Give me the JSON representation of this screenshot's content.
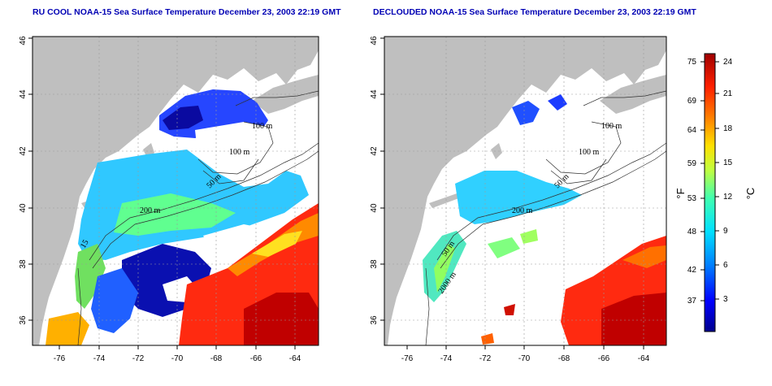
{
  "panels": [
    {
      "id": "left",
      "title": "RU COOL NOAA-15 Sea Surface Temperature December 23, 2003 22:19 GMT"
    },
    {
      "id": "right",
      "title": "DECLOUDED NOAA-15 Sea Surface Temperature December 23, 2003 22:19 GMT"
    }
  ],
  "axes": {
    "lon_ticks": [
      "-76",
      "-74",
      "-72",
      "-70",
      "-68",
      "-66",
      "-64"
    ],
    "lat_ticks": [
      "36",
      "38",
      "40",
      "42",
      "44",
      "46"
    ]
  },
  "contour_labels": {
    "left": [
      "100 m",
      "100 m",
      "50 m",
      "200 m",
      "15"
    ],
    "right": [
      "100 m",
      "100 m",
      "50 m",
      "200 m",
      "50 m",
      "2000 m"
    ]
  },
  "colorbar": {
    "fahrenheit_ticks": [
      "75",
      "69",
      "64",
      "59",
      "53",
      "48",
      "42",
      "37"
    ],
    "celsius_ticks": [
      "24",
      "21",
      "18",
      "15",
      "12",
      "9",
      "6",
      "3"
    ],
    "fahrenheit_unit": "°F",
    "celsius_unit": "°C"
  },
  "colors": {
    "land": "#bfbfbf",
    "title": "#0000b4",
    "scale": [
      "#00008c",
      "#0000ff",
      "#0080ff",
      "#00e0ff",
      "#40ffb0",
      "#c0ff40",
      "#ffe000",
      "#ff8000",
      "#ff2000",
      "#a00000"
    ]
  }
}
